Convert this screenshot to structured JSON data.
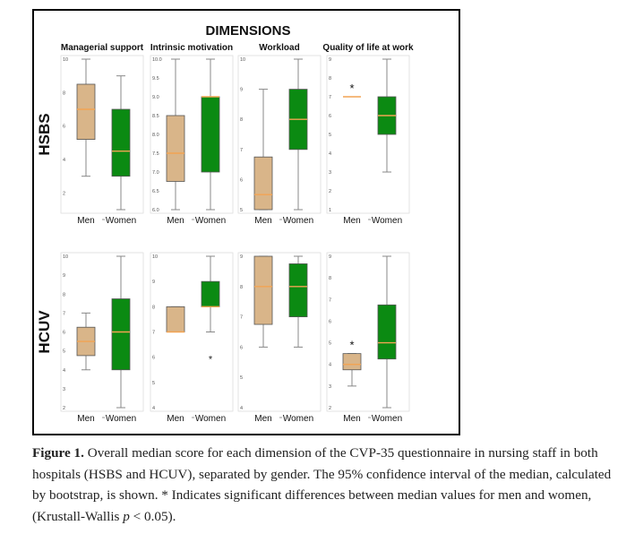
{
  "chart_data": {
    "type": "boxplot",
    "title": "DIMENSIONS",
    "columns": [
      "Managerial support",
      "Intrinsic motivation",
      "Workload",
      "Quality of life at work"
    ],
    "rows": [
      "HSBS",
      "HCUV"
    ],
    "categories": [
      "Men",
      "Women"
    ],
    "colors": {
      "Men": "#d9b589",
      "Women": "#0b8a12",
      "median": "#f2a453"
    },
    "panels": [
      {
        "row": "HSBS",
        "column": "Managerial support",
        "ylim": [
          1,
          10
        ],
        "yticks": [
          "10",
          "8",
          "6",
          "4",
          "2"
        ],
        "boxes": [
          {
            "group": "Men",
            "min": 3,
            "q1": 5.2,
            "median": 7,
            "q3": 8.5,
            "max": 10
          },
          {
            "group": "Women",
            "min": 1,
            "q1": 3,
            "median": 4.5,
            "q3": 7,
            "max": 9
          }
        ]
      },
      {
        "row": "HSBS",
        "column": "Intrinsic motivation",
        "ylim": [
          6,
          10
        ],
        "yticks": [
          "10.0",
          "9.5",
          "9.0",
          "8.5",
          "8.0",
          "7.5",
          "7.0",
          "6.5",
          "6.0"
        ],
        "boxes": [
          {
            "group": "Men",
            "min": 6,
            "q1": 6.75,
            "median": 7.5,
            "q3": 8.5,
            "max": 10
          },
          {
            "group": "Women",
            "min": 6,
            "q1": 7,
            "median": 9,
            "q3": 9,
            "max": 10
          }
        ]
      },
      {
        "row": "HSBS",
        "column": "Workload",
        "ylim": [
          5,
          10
        ],
        "yticks": [
          "10",
          "9",
          "8",
          "7",
          "6",
          "5"
        ],
        "boxes": [
          {
            "group": "Men",
            "min": 5,
            "q1": 5,
            "median": 5.5,
            "q3": 6.75,
            "max": 9
          },
          {
            "group": "Women",
            "min": 5,
            "q1": 7,
            "median": 8,
            "q3": 9,
            "max": 10
          }
        ]
      },
      {
        "row": "HSBS",
        "column": "Quality of life at work",
        "ylim": [
          1,
          9
        ],
        "yticks": [
          "9",
          "8",
          "7",
          "6",
          "5",
          "4",
          "3",
          "2",
          "1"
        ],
        "boxes": [
          {
            "group": "Men",
            "min": 7,
            "q1": 7,
            "median": 7,
            "q3": 7,
            "max": 7,
            "marker": "*"
          },
          {
            "group": "Women",
            "min": 3,
            "q1": 5,
            "median": 6,
            "q3": 7,
            "max": 9
          }
        ]
      },
      {
        "row": "HCUV",
        "column": "Managerial support",
        "ylim": [
          2,
          10
        ],
        "yticks": [
          "10",
          "9",
          "8",
          "7",
          "6",
          "5",
          "4",
          "3",
          "2"
        ],
        "boxes": [
          {
            "group": "Men",
            "min": 4,
            "q1": 4.75,
            "median": 5.5,
            "q3": 6.25,
            "max": 7
          },
          {
            "group": "Women",
            "min": 2,
            "q1": 4,
            "median": 6,
            "q3": 7.75,
            "max": 10
          }
        ]
      },
      {
        "row": "HCUV",
        "column": "Intrinsic motivation",
        "ylim": [
          4,
          10
        ],
        "yticks": [
          "10",
          "9",
          "8",
          "7",
          "6",
          "5",
          "4"
        ],
        "boxes": [
          {
            "group": "Men",
            "min": 7,
            "q1": 7,
            "median": 7,
            "q3": 8,
            "max": 8
          },
          {
            "group": "Women",
            "min": 7,
            "q1": 8,
            "median": 8,
            "q3": 9,
            "max": 10,
            "outlier": 6,
            "outlier_marker": "*"
          }
        ]
      },
      {
        "row": "HCUV",
        "column": "Workload",
        "ylim": [
          4,
          9
        ],
        "yticks": [
          "9",
          "8",
          "7",
          "6",
          "5",
          "4"
        ],
        "boxes": [
          {
            "group": "Men",
            "min": 6,
            "q1": 6.75,
            "median": 8,
            "q3": 9,
            "max": 9
          },
          {
            "group": "Women",
            "min": 6,
            "q1": 7,
            "median": 8,
            "q3": 8.75,
            "max": 9
          }
        ]
      },
      {
        "row": "HCUV",
        "column": "Quality of life at work",
        "ylim": [
          2,
          9
        ],
        "yticks": [
          "9",
          "8",
          "7",
          "6",
          "5",
          "4",
          "3",
          "2"
        ],
        "boxes": [
          {
            "group": "Men",
            "min": 3,
            "q1": 3.75,
            "median": 4,
            "q3": 4.5,
            "max": 4.5,
            "marker": "*"
          },
          {
            "group": "Women",
            "min": 2,
            "q1": 4.25,
            "median": 5,
            "q3": 6.75,
            "max": 9
          }
        ]
      }
    ]
  },
  "caption": {
    "label": "Figure 1.",
    "text1": " Overall median score for each dimension of the CVP-35 questionnaire in nursing staff in both hospitals (HSBS and HCUV), separated by gender. The 95% confidence interval of the median, calculated by bootstrap, is shown. * Indicates significant differences between median values for men and women, (Krustall-Wallis ",
    "p": "p",
    "text2": " < 0.05)."
  }
}
